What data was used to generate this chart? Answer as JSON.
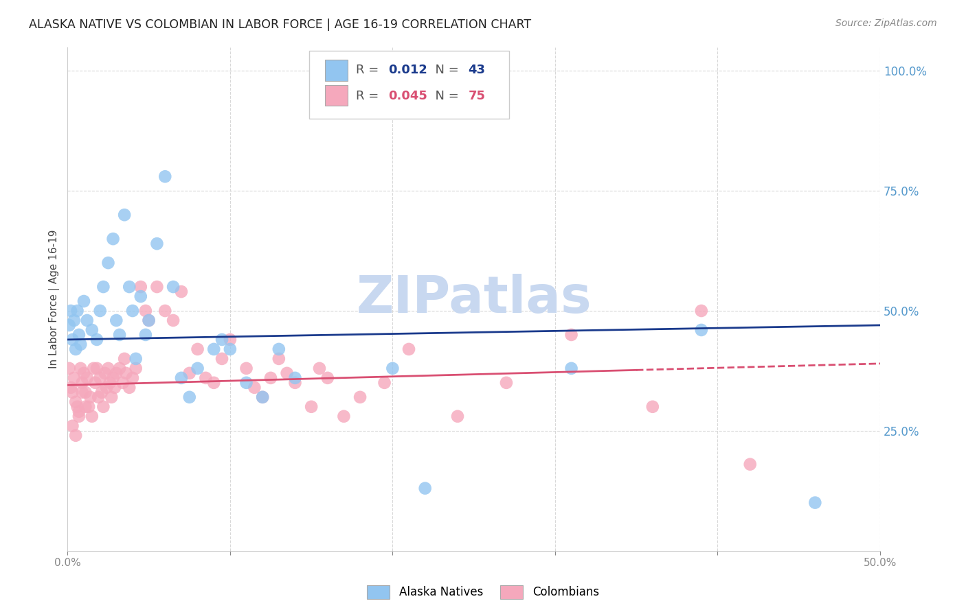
{
  "title": "ALASKA NATIVE VS COLOMBIAN IN LABOR FORCE | AGE 16-19 CORRELATION CHART",
  "source": "Source: ZipAtlas.com",
  "ylabel": "In Labor Force | Age 16-19",
  "xlim": [
    0.0,
    0.5
  ],
  "ylim": [
    0.0,
    1.05
  ],
  "blue_R": 0.012,
  "blue_N": 43,
  "pink_R": 0.045,
  "pink_N": 75,
  "blue_color": "#92C5F0",
  "pink_color": "#F5A8BC",
  "blue_line_color": "#1a3a8c",
  "pink_line_color": "#d94f72",
  "grid_color": "#d8d8d8",
  "blue_scatter_x": [
    0.001,
    0.002,
    0.003,
    0.004,
    0.005,
    0.006,
    0.007,
    0.008,
    0.01,
    0.012,
    0.015,
    0.018,
    0.02,
    0.022,
    0.025,
    0.028,
    0.03,
    0.032,
    0.035,
    0.038,
    0.04,
    0.042,
    0.045,
    0.048,
    0.05,
    0.055,
    0.06,
    0.065,
    0.07,
    0.075,
    0.08,
    0.09,
    0.095,
    0.1,
    0.11,
    0.12,
    0.13,
    0.14,
    0.2,
    0.22,
    0.31,
    0.39,
    0.46
  ],
  "blue_scatter_y": [
    0.47,
    0.5,
    0.44,
    0.48,
    0.42,
    0.5,
    0.45,
    0.43,
    0.52,
    0.48,
    0.46,
    0.44,
    0.5,
    0.55,
    0.6,
    0.65,
    0.48,
    0.45,
    0.7,
    0.55,
    0.5,
    0.4,
    0.53,
    0.45,
    0.48,
    0.64,
    0.78,
    0.55,
    0.36,
    0.32,
    0.38,
    0.42,
    0.44,
    0.42,
    0.35,
    0.32,
    0.42,
    0.36,
    0.38,
    0.13,
    0.38,
    0.46,
    0.1
  ],
  "pink_scatter_x": [
    0.001,
    0.002,
    0.003,
    0.004,
    0.005,
    0.006,
    0.007,
    0.008,
    0.009,
    0.01,
    0.011,
    0.012,
    0.013,
    0.014,
    0.015,
    0.016,
    0.017,
    0.018,
    0.019,
    0.02,
    0.021,
    0.022,
    0.023,
    0.024,
    0.025,
    0.026,
    0.027,
    0.028,
    0.029,
    0.03,
    0.032,
    0.034,
    0.035,
    0.036,
    0.038,
    0.04,
    0.042,
    0.045,
    0.048,
    0.05,
    0.055,
    0.06,
    0.065,
    0.07,
    0.075,
    0.08,
    0.085,
    0.09,
    0.095,
    0.1,
    0.11,
    0.115,
    0.12,
    0.125,
    0.13,
    0.135,
    0.14,
    0.15,
    0.155,
    0.16,
    0.17,
    0.18,
    0.195,
    0.21,
    0.24,
    0.27,
    0.31,
    0.36,
    0.39,
    0.42,
    0.003,
    0.005,
    0.007,
    0.009,
    0.011
  ],
  "pink_scatter_y": [
    0.38,
    0.34,
    0.33,
    0.36,
    0.31,
    0.3,
    0.29,
    0.38,
    0.35,
    0.37,
    0.33,
    0.36,
    0.3,
    0.32,
    0.28,
    0.38,
    0.35,
    0.38,
    0.32,
    0.36,
    0.33,
    0.3,
    0.37,
    0.34,
    0.38,
    0.35,
    0.32,
    0.36,
    0.34,
    0.37,
    0.38,
    0.35,
    0.4,
    0.37,
    0.34,
    0.36,
    0.38,
    0.55,
    0.5,
    0.48,
    0.55,
    0.5,
    0.48,
    0.54,
    0.37,
    0.42,
    0.36,
    0.35,
    0.4,
    0.44,
    0.38,
    0.34,
    0.32,
    0.36,
    0.4,
    0.37,
    0.35,
    0.3,
    0.38,
    0.36,
    0.28,
    0.32,
    0.35,
    0.42,
    0.28,
    0.35,
    0.45,
    0.3,
    0.5,
    0.18,
    0.26,
    0.24,
    0.28,
    0.33,
    0.3
  ],
  "watermark": "ZIPatlas",
  "watermark_color": "#c8d8f0"
}
